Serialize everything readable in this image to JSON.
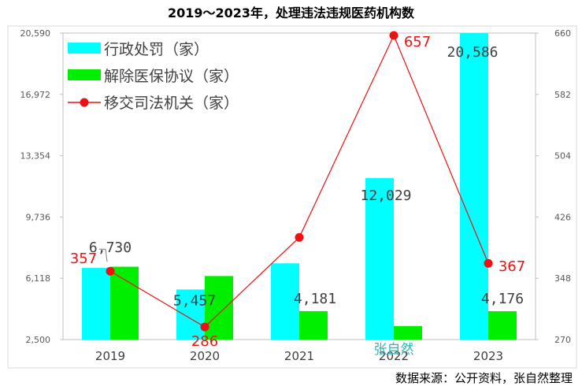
{
  "chart_data": {
    "type": "bar+line",
    "title": "2019～2023年，处理违法违规医药机构数",
    "categories": [
      "2019",
      "2020",
      "2021",
      "2022",
      "2023"
    ],
    "series": [
      {
        "name": "行政处罚（家）",
        "type": "bar",
        "axis": "left",
        "color": "#00FFFF",
        "values": [
          6730,
          5457,
          7000,
          12029,
          20586
        ],
        "labels": [
          "6,730",
          "5,457",
          "",
          "12,029",
          "20,586"
        ]
      },
      {
        "name": "解除医保协议（家）",
        "type": "bar",
        "axis": "left",
        "color": "#00EE00",
        "values": [
          6800,
          6250,
          4181,
          3300,
          4176
        ],
        "labels": [
          "",
          "",
          "4,181",
          "",
          "4,176"
        ]
      },
      {
        "name": "移交司法机关（家）",
        "type": "line",
        "axis": "right",
        "color": "#EE1111",
        "values": [
          357,
          286,
          400,
          657,
          367
        ],
        "labels": [
          "357",
          "286",
          "",
          "657",
          "367"
        ]
      }
    ],
    "left_axis": {
      "ylim": [
        2500,
        20590
      ],
      "ticks": [
        2500,
        6118,
        9736,
        13354,
        16972,
        20590
      ],
      "tick_labels": [
        "2,500",
        "6,118",
        "9,736",
        "13,354",
        "16,972",
        "20,590"
      ]
    },
    "right_axis": {
      "ylim": [
        270,
        660
      ],
      "ticks": [
        270,
        348,
        426,
        504,
        582,
        660
      ],
      "tick_labels": [
        "270",
        "348",
        "426",
        "504",
        "582",
        "660"
      ]
    },
    "legend_position": "top-left",
    "watermark": "张自然"
  },
  "source_note": "数据来源：公开资料，张自然整理",
  "colors": {
    "bar1": "#00FFFF",
    "bar2": "#00EE00",
    "line": "#EE1111",
    "watermark": "#22BBBB"
  }
}
